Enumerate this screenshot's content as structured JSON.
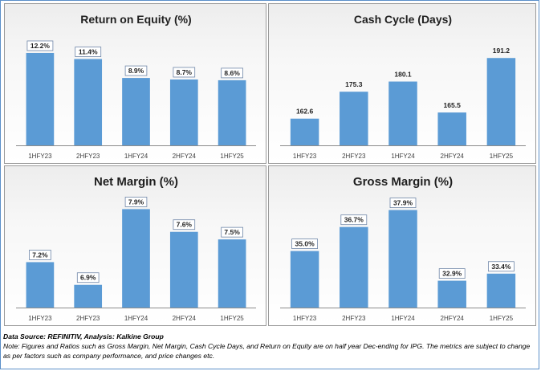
{
  "chart_data": [
    {
      "type": "bar",
      "title": "Return on Equity (%)",
      "categories": [
        "1HFY23",
        "2HFY23",
        "1HFY24",
        "2HFY24",
        "1HFY25"
      ],
      "values": [
        12.2,
        11.4,
        8.9,
        8.7,
        8.6
      ],
      "labels": [
        "12.2%",
        "11.4%",
        "8.9%",
        "8.7%",
        "8.6%"
      ],
      "ylim": [
        0,
        14
      ],
      "grid": false,
      "bar_color": "#5b9bd5",
      "label_boxed": true
    },
    {
      "type": "bar",
      "title": "Cash Cycle (Days)",
      "categories": [
        "1HFY23",
        "2HFY23",
        "1HFY24",
        "2HFY24",
        "1HFY25"
      ],
      "values": [
        162.6,
        175.3,
        180.1,
        165.5,
        191.2
      ],
      "labels": [
        "162.6",
        "175.3",
        "180.1",
        "165.5",
        "191.2"
      ],
      "ylim": [
        150,
        200
      ],
      "grid": false,
      "bar_color": "#5b9bd5",
      "label_boxed": false
    },
    {
      "type": "bar",
      "title": "Net Margin (%)",
      "categories": [
        "1HFY23",
        "2HFY23",
        "1HFY24",
        "2HFY24",
        "1HFY25"
      ],
      "values": [
        7.2,
        6.9,
        7.9,
        7.6,
        7.5
      ],
      "labels": [
        "7.2%",
        "6.9%",
        "7.9%",
        "7.6%",
        "7.5%"
      ],
      "ylim": [
        6.6,
        8.0
      ],
      "grid": false,
      "bar_color": "#5b9bd5",
      "label_boxed": true
    },
    {
      "type": "bar",
      "title": "Gross Margin (%)",
      "categories": [
        "1HFY23",
        "2HFY23",
        "1HFY24",
        "2HFY24",
        "1HFY25"
      ],
      "values": [
        35.0,
        36.7,
        37.9,
        32.9,
        33.4
      ],
      "labels": [
        "35.0%",
        "36.7%",
        "37.9%",
        "32.9%",
        "33.4%"
      ],
      "ylim": [
        31.0,
        38.5
      ],
      "grid": false,
      "bar_color": "#5b9bd5",
      "label_boxed": true
    }
  ],
  "footer": {
    "source": "Data Source: REFINITIV, Analysis: Kalkine Group",
    "note": "Note: Figures and Ratios such as  Gross Margin, Net Margin, Cash Cycle Days, and Return on Equity are on half year Dec-ending for IPG. The metrics are subject to change as per factors such as company performance, and price changes etc."
  }
}
